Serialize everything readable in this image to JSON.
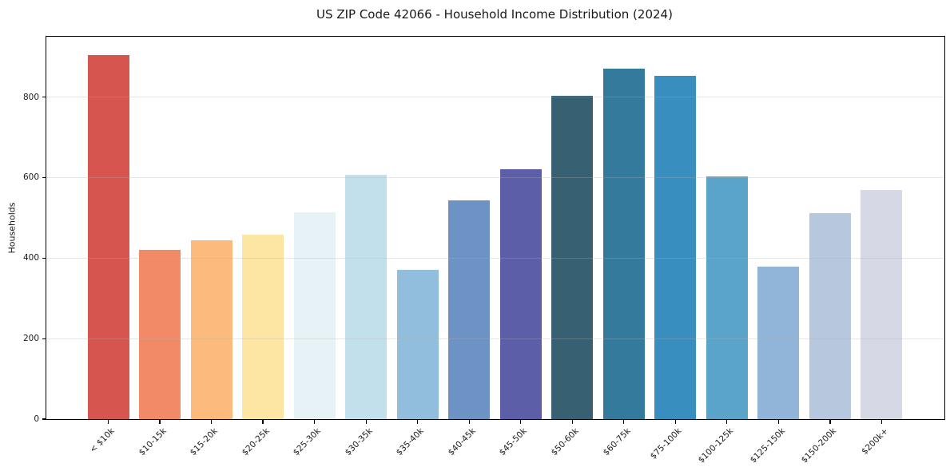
{
  "chart_data": {
    "type": "bar",
    "title": "US ZIP Code 42066 - Household Income Distribution (2024)",
    "xlabel": "",
    "ylabel": "Households",
    "categories": [
      "< $10k",
      "$10-15k",
      "$15-20k",
      "$20-25k",
      "$25-30k",
      "$30-35k",
      "$35-40k",
      "$40-45k",
      "$45-50k",
      "$50-60k",
      "$60-75k",
      "$75-100k",
      "$100-125k",
      "$125-150k",
      "$150-200k",
      "$200k+"
    ],
    "values": [
      905,
      420,
      445,
      459,
      514,
      607,
      370,
      544,
      620,
      803,
      871,
      853,
      603,
      379,
      512,
      570
    ],
    "bar_colors": [
      "#d6564f",
      "#f28a68",
      "#fcbb7d",
      "#fde5a3",
      "#e6f2f6",
      "#c2e0ec",
      "#91bedd",
      "#6d93c4",
      "#5c5fa8",
      "#386073",
      "#337a9c",
      "#398ec0",
      "#5ba4c9",
      "#91b5d9",
      "#b7c7de",
      "#d6d8e5"
    ],
    "yticks": [
      0,
      200,
      400,
      600,
      800
    ],
    "ylim": [
      0,
      950
    ],
    "grid": "horizontal",
    "grid_color": "#b0b0b0",
    "legend": "none",
    "x_tick_rotation_deg": 45,
    "axis_color": "#000000",
    "text_color": "#1a1a1a",
    "background": "#ffffff"
  }
}
